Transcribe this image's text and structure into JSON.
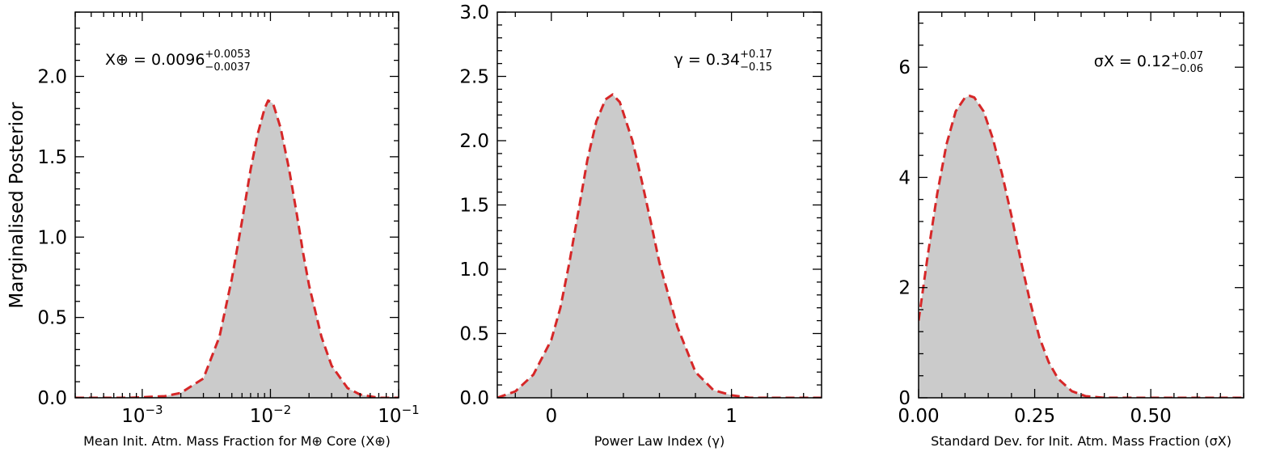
{
  "ylabel": "Marginalised Posterior",
  "chart_data": [
    {
      "type": "area",
      "xscale": "log",
      "xlim": [
        0.0003,
        0.1
      ],
      "ylim": [
        0,
        2.4
      ],
      "xlabel": "Mean Init. Atm. Mass Fraction for M⊕ Core (X⊕)",
      "ylabel": "Marginalised Posterior",
      "annotation": {
        "name": "X⊕",
        "value": "0.0096",
        "plus": "+0.0053",
        "minus": "−0.0037"
      },
      "xticks": [
        {
          "v": 0.001,
          "base": "10",
          "exp": "−3"
        },
        {
          "v": 0.01,
          "base": "10",
          "exp": "−2"
        },
        {
          "v": 0.1,
          "base": "10",
          "exp": "−1"
        }
      ],
      "yticks": [
        {
          "v": 0.0,
          "label": "0.0"
        },
        {
          "v": 0.5,
          "label": "0.5"
        },
        {
          "v": 1.0,
          "label": "1.0"
        },
        {
          "v": 1.5,
          "label": "1.5"
        },
        {
          "v": 2.0,
          "label": "2.0"
        }
      ],
      "series": [
        {
          "x": [
            0.0003,
            0.0008,
            0.0015,
            0.002,
            0.003,
            0.004,
            0.005,
            0.006,
            0.007,
            0.008,
            0.009,
            0.0096,
            0.0105,
            0.012,
            0.014,
            0.016,
            0.018,
            0.02,
            0.025,
            0.03,
            0.04,
            0.05,
            0.07,
            0.1
          ],
          "y": [
            0.0,
            0.0,
            0.01,
            0.03,
            0.12,
            0.38,
            0.74,
            1.1,
            1.42,
            1.65,
            1.8,
            1.85,
            1.83,
            1.68,
            1.42,
            1.15,
            0.9,
            0.7,
            0.38,
            0.2,
            0.06,
            0.02,
            0.0,
            0.0
          ]
        }
      ]
    },
    {
      "type": "area",
      "xlim": [
        -0.3,
        1.5
      ],
      "ylim": [
        0,
        3.0
      ],
      "xlabel": "Power Law Index (γ)",
      "annotation": {
        "name": "γ",
        "value": "0.34",
        "plus": "+0.17",
        "minus": "−0.15"
      },
      "xticks": [
        {
          "v": 0,
          "label": "0"
        },
        {
          "v": 1,
          "label": "1"
        }
      ],
      "yticks": [
        {
          "v": 0.0,
          "label": "0.0"
        },
        {
          "v": 0.5,
          "label": "0.5"
        },
        {
          "v": 1.0,
          "label": "1.0"
        },
        {
          "v": 1.5,
          "label": "1.5"
        },
        {
          "v": 2.0,
          "label": "2.0"
        },
        {
          "v": 2.5,
          "label": "2.5"
        },
        {
          "v": 3.0,
          "label": "3.0"
        }
      ],
      "series": [
        {
          "x": [
            -0.3,
            -0.2,
            -0.1,
            0.0,
            0.05,
            0.1,
            0.15,
            0.2,
            0.25,
            0.3,
            0.34,
            0.38,
            0.45,
            0.5,
            0.55,
            0.6,
            0.7,
            0.8,
            0.9,
            1.0,
            1.1,
            1.2,
            1.5
          ],
          "y": [
            0.0,
            0.05,
            0.18,
            0.45,
            0.7,
            1.05,
            1.45,
            1.85,
            2.15,
            2.32,
            2.36,
            2.3,
            2.0,
            1.7,
            1.38,
            1.05,
            0.55,
            0.2,
            0.06,
            0.02,
            0.0,
            0.0,
            0.0
          ]
        }
      ]
    },
    {
      "type": "area",
      "xlim": [
        0.0,
        0.7
      ],
      "ylim": [
        0,
        7.0
      ],
      "xlabel": "Standard Dev. for Init. Atm. Mass Fraction (σX)",
      "annotation": {
        "name": "σX",
        "value": "0.12",
        "plus": "+0.07",
        "minus": "−0.06"
      },
      "xticks": [
        {
          "v": 0.0,
          "label": "0.00"
        },
        {
          "v": 0.25,
          "label": "0.25"
        },
        {
          "v": 0.5,
          "label": "0.50"
        }
      ],
      "yticks": [
        {
          "v": 0,
          "label": "0"
        },
        {
          "v": 2,
          "label": "2"
        },
        {
          "v": 4,
          "label": "4"
        },
        {
          "v": 6,
          "label": "6"
        }
      ],
      "series": [
        {
          "x": [
            0.0,
            0.02,
            0.04,
            0.06,
            0.08,
            0.1,
            0.11,
            0.12,
            0.14,
            0.16,
            0.18,
            0.2,
            0.22,
            0.24,
            0.26,
            0.28,
            0.3,
            0.33,
            0.36,
            0.4,
            0.5,
            0.7
          ],
          "y": [
            1.4,
            2.6,
            3.7,
            4.6,
            5.2,
            5.45,
            5.48,
            5.45,
            5.2,
            4.7,
            4.05,
            3.3,
            2.5,
            1.75,
            1.1,
            0.65,
            0.35,
            0.12,
            0.03,
            0.0,
            0.0,
            0.0
          ]
        }
      ]
    }
  ]
}
